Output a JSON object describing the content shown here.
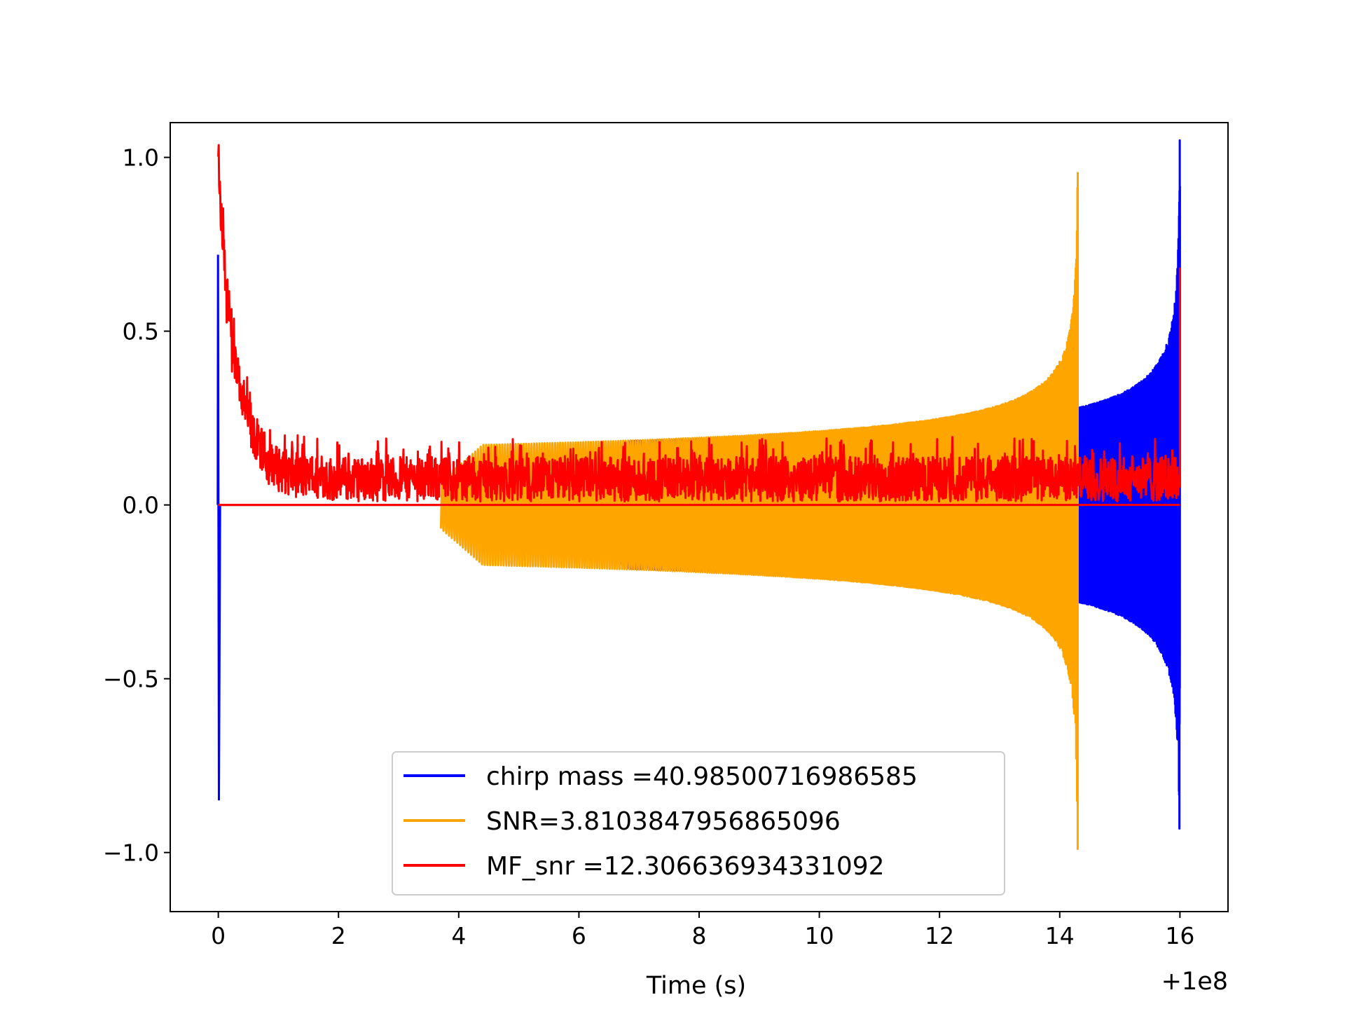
{
  "chart_data": {
    "type": "line",
    "title": "",
    "xlabel": "Time (s)",
    "ylabel": "",
    "x_offset_label": "+1e8",
    "xlim": [
      -0.8,
      16.8
    ],
    "ylim": [
      -1.17,
      1.1
    ],
    "x_ticks": [
      0,
      2,
      4,
      6,
      8,
      10,
      12,
      14,
      16
    ],
    "x_tick_labels": [
      "0",
      "2",
      "4",
      "6",
      "8",
      "10",
      "12",
      "14",
      "16"
    ],
    "y_ticks": [
      1.0,
      0.5,
      0.0,
      -0.5,
      -1.0
    ],
    "y_tick_labels": [
      "1.0",
      "0.5",
      "0.0",
      "−0.5",
      "−1.0"
    ],
    "grid": false,
    "legend_position": "lower-center",
    "series": [
      {
        "name": "chirp mass =40.98500716986585",
        "color": "#0000ff",
        "kind": "chirp",
        "start_x": 6.1,
        "end_x": 16.0,
        "base_amplitude": 0.18,
        "amplitude_at_merger": 1.05,
        "early_spike": {
          "x": 0.0,
          "max": 0.72,
          "min": -0.85
        }
      },
      {
        "name": "SNR=3.8103847956865096",
        "color": "#ffa500",
        "kind": "chirp",
        "start_x": 3.7,
        "end_x": 14.3,
        "base_amplitude": 0.17,
        "amplitude_at_merger": 1.0
      },
      {
        "name": "MF_snr =12.306636934331092",
        "color": "#ff0000",
        "kind": "noise",
        "start_x": 0.0,
        "end_x": 16.0,
        "initial_peak": 1.0,
        "decay_time": 0.3,
        "noise_level": 0.08,
        "final_spike": 0.68
      }
    ]
  }
}
